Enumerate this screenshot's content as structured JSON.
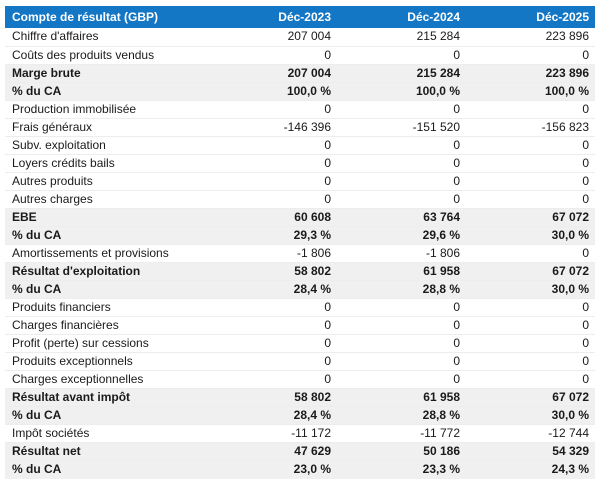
{
  "table": {
    "title": "Compte de résultat (GBP)",
    "columns": [
      "Déc-2023",
      "Déc-2024",
      "Déc-2025"
    ],
    "rows": [
      {
        "label": "Chiffre d'affaires",
        "values": [
          "207 004",
          "215 284",
          "223 896"
        ],
        "emphasis": false
      },
      {
        "label": "Coûts des produits vendus",
        "values": [
          "0",
          "0",
          "0"
        ],
        "emphasis": false
      },
      {
        "label": "Marge brute",
        "values": [
          "207 004",
          "215 284",
          "223 896"
        ],
        "emphasis": true
      },
      {
        "label": "% du CA",
        "values": [
          "100,0 %",
          "100,0 %",
          "100,0 %"
        ],
        "emphasis": true
      },
      {
        "label": "Production immobilisée",
        "values": [
          "0",
          "0",
          "0"
        ],
        "emphasis": false
      },
      {
        "label": "Frais généraux",
        "values": [
          "-146 396",
          "-151 520",
          "-156 823"
        ],
        "emphasis": false
      },
      {
        "label": "Subv. exploitation",
        "values": [
          "0",
          "0",
          "0"
        ],
        "emphasis": false
      },
      {
        "label": "Loyers crédits bails",
        "values": [
          "0",
          "0",
          "0"
        ],
        "emphasis": false
      },
      {
        "label": "Autres produits",
        "values": [
          "0",
          "0",
          "0"
        ],
        "emphasis": false
      },
      {
        "label": "Autres charges",
        "values": [
          "0",
          "0",
          "0"
        ],
        "emphasis": false
      },
      {
        "label": "EBE",
        "values": [
          "60 608",
          "63 764",
          "67 072"
        ],
        "emphasis": true
      },
      {
        "label": "% du CA",
        "values": [
          "29,3 %",
          "29,6 %",
          "30,0 %"
        ],
        "emphasis": true
      },
      {
        "label": "Amortissements et provisions",
        "values": [
          "-1 806",
          "-1 806",
          "0"
        ],
        "emphasis": false
      },
      {
        "label": "Résultat d'exploitation",
        "values": [
          "58 802",
          "61 958",
          "67 072"
        ],
        "emphasis": true
      },
      {
        "label": "% du CA",
        "values": [
          "28,4 %",
          "28,8 %",
          "30,0 %"
        ],
        "emphasis": true
      },
      {
        "label": "Produits financiers",
        "values": [
          "0",
          "0",
          "0"
        ],
        "emphasis": false
      },
      {
        "label": "Charges financières",
        "values": [
          "0",
          "0",
          "0"
        ],
        "emphasis": false
      },
      {
        "label": "Profit (perte) sur cessions",
        "values": [
          "0",
          "0",
          "0"
        ],
        "emphasis": false
      },
      {
        "label": "Produits exceptionnels",
        "values": [
          "0",
          "0",
          "0"
        ],
        "emphasis": false
      },
      {
        "label": "Charges exceptionnelles",
        "values": [
          "0",
          "0",
          "0"
        ],
        "emphasis": false
      },
      {
        "label": "Résultat avant impôt",
        "values": [
          "58 802",
          "61 958",
          "67 072"
        ],
        "emphasis": true
      },
      {
        "label": "% du CA",
        "values": [
          "28,4 %",
          "28,8 %",
          "30,0 %"
        ],
        "emphasis": true
      },
      {
        "label": "Impôt sociétés",
        "values": [
          "-11 172",
          "-11 772",
          "-12 744"
        ],
        "emphasis": false
      },
      {
        "label": "Résultat net",
        "values": [
          "47 629",
          "50 186",
          "54 329"
        ],
        "emphasis": true
      },
      {
        "label": "% du CA",
        "values": [
          "23,0 %",
          "23,3 %",
          "24,3 %"
        ],
        "emphasis": true
      }
    ],
    "colors": {
      "header_bg": "#1477c5",
      "header_text": "#ffffff",
      "emphasis_bg": "#f0f0f0",
      "row_border": "#ededed",
      "text": "#1a1a1a"
    }
  }
}
